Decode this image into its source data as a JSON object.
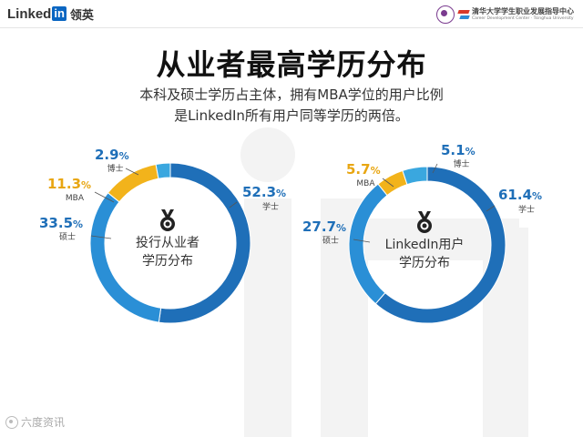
{
  "header": {
    "brand_word": "Linked",
    "brand_box": "in",
    "brand_cn": "领英",
    "partner_name": "清华大学学生职业发展指导中心",
    "partner_sub": "Career Development Center · Tsinghua University"
  },
  "title": "从业者最高学历分布",
  "subtitle_line1": "本科及硕士学历占主体，拥有MBA学位的用户比例",
  "subtitle_line2": "是LinkedIn所有用户同等学历的两倍。",
  "colors": {
    "bachelor": "#1f6fb8",
    "master": "#2a8fd6",
    "mba": "#f2b31b",
    "phd": "#3aa7df",
    "text_blue": "#1f6fb8",
    "text_gold": "#e8a612",
    "watermark": "#f3f3f3"
  },
  "chart_data": [
    {
      "type": "pie",
      "variant": "donut",
      "center_label": [
        "投行从业者",
        "学历分布"
      ],
      "categories": [
        "学士",
        "硕士",
        "MBA",
        "博士"
      ],
      "values": [
        52.3,
        33.5,
        11.3,
        2.9
      ],
      "value_labels": [
        "52.3",
        "33.5",
        "11.3",
        "2.9"
      ],
      "unit": "%",
      "center_icon": "medal-icon"
    },
    {
      "type": "pie",
      "variant": "donut",
      "center_label": [
        "LinkedIn用户",
        "学历分布"
      ],
      "categories": [
        "学士",
        "硕士",
        "MBA",
        "博士"
      ],
      "values": [
        61.4,
        27.7,
        5.7,
        5.1
      ],
      "value_labels": [
        "61.4",
        "27.7",
        "5.7",
        "5.1"
      ],
      "unit": "%",
      "center_icon": "medal-icon"
    }
  ],
  "footer": {
    "credit": "六度资讯"
  }
}
